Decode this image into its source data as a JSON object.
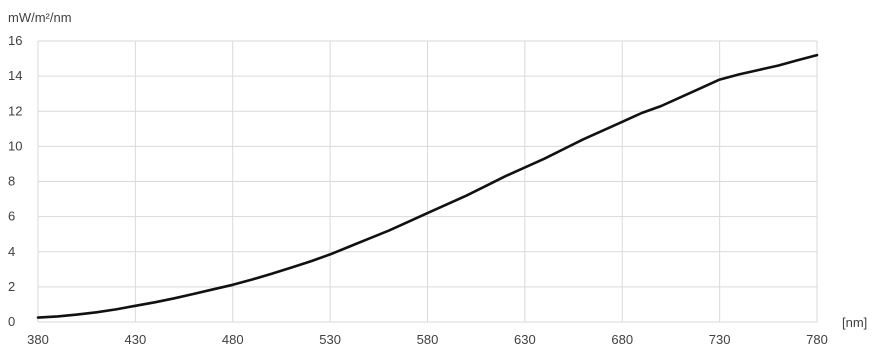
{
  "chart_data": {
    "type": "line",
    "ylabel": "mW/m²/nm",
    "xlabel": "[nm]",
    "xlim": [
      380,
      780
    ],
    "ylim": [
      0,
      16
    ],
    "x_ticks": [
      380,
      430,
      480,
      530,
      580,
      630,
      680,
      730,
      780
    ],
    "y_ticks": [
      0,
      2,
      4,
      6,
      8,
      10,
      12,
      14,
      16
    ],
    "grid": "vertical and horizontal",
    "legend": "none",
    "colors": {
      "line": "#111111",
      "grid": "#d9d9d9",
      "text": "#404040"
    },
    "series": [
      {
        "x": [
          380,
          390,
          400,
          410,
          420,
          430,
          440,
          450,
          460,
          470,
          480,
          490,
          500,
          510,
          520,
          530,
          540,
          550,
          560,
          570,
          580,
          590,
          600,
          610,
          620,
          630,
          640,
          650,
          660,
          670,
          680,
          690,
          700,
          710,
          720,
          730,
          740,
          750,
          760,
          770,
          780
        ],
        "values": [
          0.25,
          0.32,
          0.42,
          0.55,
          0.72,
          0.92,
          1.12,
          1.35,
          1.6,
          1.86,
          2.12,
          2.42,
          2.75,
          3.1,
          3.45,
          3.85,
          4.3,
          4.75,
          5.2,
          5.7,
          6.2,
          6.7,
          7.2,
          7.75,
          8.3,
          8.8,
          9.3,
          9.85,
          10.4,
          10.9,
          11.4,
          11.9,
          12.3,
          12.8,
          13.3,
          13.8,
          14.1,
          14.35,
          14.6,
          14.9,
          15.2
        ]
      }
    ]
  }
}
